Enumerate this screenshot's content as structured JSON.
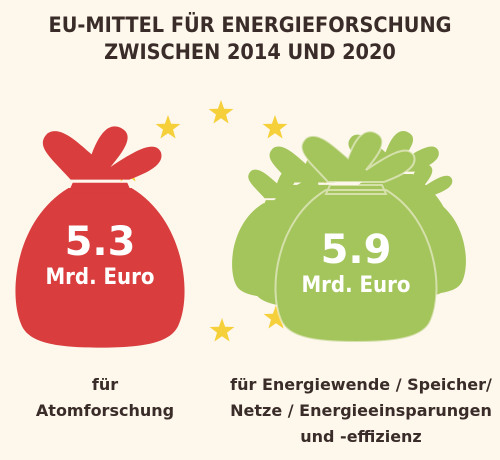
{
  "title": {
    "line1": "EU-MITTEL FÜR ENERGIEFORSCHUNG",
    "line2": "ZWISCHEN 2014 UND 2020"
  },
  "left_bag": {
    "value": "5.3",
    "unit": "Mrd. Euro",
    "color": "#d93d3d"
  },
  "right_bag": {
    "value": "5.9",
    "unit": "Mrd. Euro",
    "color": "#a4c55c"
  },
  "captions": {
    "left": [
      "für",
      "Atomforschung"
    ],
    "right": [
      "für Energiewende / Speicher/",
      "Netze / Energieeinsparungen",
      "und -effizienz"
    ]
  },
  "star_color": "#f6d03a",
  "icons": [
    "eu-star-icon",
    "money-bag-icon"
  ]
}
